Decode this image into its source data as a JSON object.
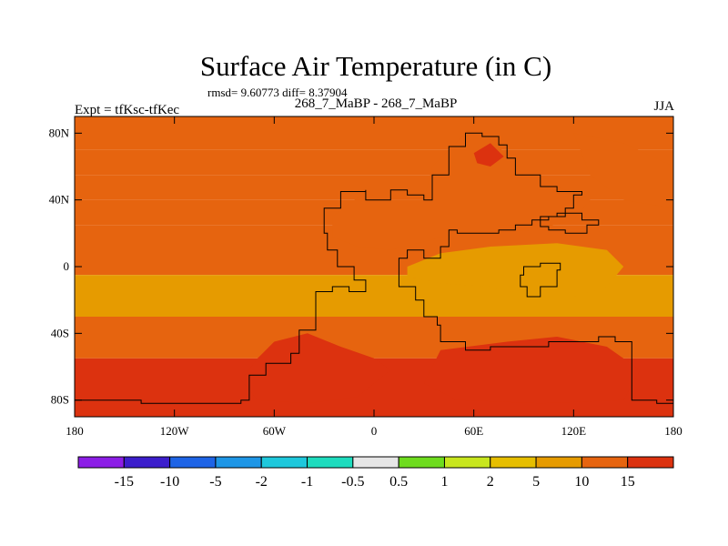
{
  "chart_data": {
    "type": "heatmap",
    "title": "Surface Air Temperature (in C)",
    "stats_text": "rmsd= 9.60773 diff= 8.37904",
    "subtitle": "268_7_MaBP - 268_7_MaBP",
    "left_label": "Expt = tfKsc-tfKec",
    "right_label": "JJA",
    "xlim": [
      -180,
      180
    ],
    "ylim": [
      -90,
      90
    ],
    "x_ticks": [
      {
        "value": -180,
        "label": "180"
      },
      {
        "value": -120,
        "label": "120W"
      },
      {
        "value": -60,
        "label": "60W"
      },
      {
        "value": 0,
        "label": "0"
      },
      {
        "value": 60,
        "label": "60E"
      },
      {
        "value": 120,
        "label": "120E"
      },
      {
        "value": 180,
        "label": "180"
      }
    ],
    "y_ticks": [
      {
        "value": 80,
        "label": "80N"
      },
      {
        "value": 40,
        "label": "40N"
      },
      {
        "value": 0,
        "label": "0"
      },
      {
        "value": -40,
        "label": "40S"
      },
      {
        "value": -80,
        "label": "80S"
      }
    ],
    "colorbar": {
      "colors": [
        "#8c1ee6",
        "#3c1ecc",
        "#1e64e6",
        "#1e96e6",
        "#1ec8dc",
        "#1edcbe",
        "#e6e6e6",
        "#6edc1e",
        "#c8e61e",
        "#e6be00",
        "#e69b00",
        "#e6640f",
        "#dc320f"
      ],
      "labels": [
        "-15",
        "-10",
        "-5",
        "-2",
        "-1",
        "-0.5",
        "0.5",
        "1",
        "2",
        "5",
        "10",
        "15"
      ]
    },
    "field_bands": [
      {
        "lat": 90,
        "level": 10
      },
      {
        "lat": 70,
        "level": 10
      },
      {
        "lat": 55,
        "level": 10
      },
      {
        "lat": 40,
        "level": 10
      },
      {
        "lat": 25,
        "level": 10
      },
      {
        "lat": 12,
        "level": 10
      },
      {
        "lat": -5,
        "level": 5
      },
      {
        "lat": -18,
        "level": 5
      },
      {
        "lat": -30,
        "level": 10
      },
      {
        "lat": -45,
        "level": 10
      },
      {
        "lat": -55,
        "level": 15
      },
      {
        "lat": -90,
        "level": 15
      }
    ],
    "field_regions": [
      {
        "name": "pangaea-north",
        "level": 10,
        "points": [
          [
            -25,
            30
          ],
          [
            -5,
            45
          ],
          [
            5,
            40
          ],
          [
            20,
            40
          ],
          [
            30,
            40
          ],
          [
            35,
            60
          ],
          [
            55,
            80
          ],
          [
            70,
            80
          ],
          [
            80,
            65
          ],
          [
            90,
            55
          ],
          [
            100,
            55
          ],
          [
            110,
            48
          ],
          [
            130,
            40
          ],
          [
            120,
            28
          ],
          [
            95,
            22
          ],
          [
            70,
            20
          ],
          [
            50,
            20
          ],
          [
            30,
            15
          ],
          [
            10,
            10
          ],
          [
            -10,
            12
          ],
          [
            -25,
            18
          ]
        ]
      },
      {
        "name": "tethys-warm",
        "level": 5,
        "points": [
          [
            20,
            0
          ],
          [
            40,
            8
          ],
          [
            70,
            12
          ],
          [
            110,
            14
          ],
          [
            140,
            10
          ],
          [
            150,
            0
          ],
          [
            140,
            -12
          ],
          [
            120,
            -18
          ],
          [
            95,
            -18
          ],
          [
            70,
            -12
          ],
          [
            40,
            -10
          ],
          [
            20,
            -6
          ]
        ]
      },
      {
        "name": "northern-hotspot",
        "level": 15,
        "points": [
          [
            60,
            68
          ],
          [
            70,
            74
          ],
          [
            78,
            66
          ],
          [
            70,
            60
          ],
          [
            62,
            62
          ]
        ]
      },
      {
        "name": "eastern-ocean-warm",
        "level": 10,
        "points": [
          [
            120,
            80
          ],
          [
            150,
            74
          ],
          [
            180,
            60
          ],
          [
            180,
            35
          ],
          [
            150,
            40
          ],
          [
            130,
            55
          ]
        ]
      },
      {
        "name": "gondwana-interior",
        "level": 15,
        "points": [
          [
            -70,
            -55
          ],
          [
            -60,
            -45
          ],
          [
            -40,
            -40
          ],
          [
            -20,
            -48
          ],
          [
            0,
            -55
          ],
          [
            10,
            -62
          ],
          [
            -10,
            -78
          ],
          [
            -40,
            -82
          ],
          [
            -70,
            -80
          ],
          [
            -80,
            -68
          ]
        ]
      },
      {
        "name": "gondwana-east",
        "level": 15,
        "points": [
          [
            40,
            -50
          ],
          [
            80,
            -45
          ],
          [
            110,
            -42
          ],
          [
            140,
            -48
          ],
          [
            160,
            -62
          ],
          [
            150,
            -80
          ],
          [
            100,
            -82
          ],
          [
            50,
            -80
          ],
          [
            30,
            -70
          ]
        ]
      }
    ],
    "coastlines": [
      {
        "name": "pangaea",
        "points": [
          [
            -30,
            35
          ],
          [
            -20,
            45
          ],
          [
            -5,
            46
          ],
          [
            -5,
            40
          ],
          [
            5,
            40
          ],
          [
            10,
            46
          ],
          [
            20,
            43
          ],
          [
            30,
            40
          ],
          [
            35,
            55
          ],
          [
            45,
            62
          ],
          [
            45,
            72
          ],
          [
            55,
            80
          ],
          [
            65,
            78
          ],
          [
            75,
            73
          ],
          [
            80,
            65
          ],
          [
            85,
            55
          ],
          [
            95,
            55
          ],
          [
            100,
            48
          ],
          [
            110,
            45
          ],
          [
            125,
            43
          ],
          [
            120,
            35
          ],
          [
            115,
            30
          ],
          [
            105,
            28
          ],
          [
            95,
            25
          ],
          [
            85,
            22
          ],
          [
            75,
            20
          ],
          [
            60,
            20
          ],
          [
            50,
            22
          ],
          [
            45,
            12
          ],
          [
            40,
            5
          ],
          [
            30,
            10
          ],
          [
            20,
            5
          ],
          [
            15,
            -2
          ],
          [
            15,
            -12
          ],
          [
            25,
            -20
          ],
          [
            30,
            -30
          ],
          [
            38,
            -35
          ],
          [
            40,
            -45
          ],
          [
            55,
            -50
          ],
          [
            70,
            -48
          ],
          [
            90,
            -48
          ],
          [
            105,
            -45
          ],
          [
            120,
            -45
          ],
          [
            135,
            -42
          ],
          [
            145,
            -45
          ],
          [
            155,
            -60
          ],
          [
            155,
            -80
          ],
          [
            170,
            -82
          ],
          [
            180,
            -82
          ],
          [
            180,
            -90
          ],
          [
            -180,
            -90
          ],
          [
            -180,
            -80
          ],
          [
            -140,
            -82
          ],
          [
            -80,
            -80
          ],
          [
            -75,
            -65
          ],
          [
            -65,
            -58
          ],
          [
            -50,
            -52
          ],
          [
            -45,
            -38
          ],
          [
            -35,
            -25
          ],
          [
            -35,
            -15
          ],
          [
            -25,
            -12
          ],
          [
            -15,
            -15
          ],
          [
            -5,
            -8
          ],
          [
            -12,
            0
          ],
          [
            -22,
            10
          ],
          [
            -28,
            20
          ],
          [
            -30,
            30
          ]
        ]
      },
      {
        "name": "eastern-island",
        "points": [
          [
            90,
            0
          ],
          [
            100,
            2
          ],
          [
            112,
            -2
          ],
          [
            110,
            -12
          ],
          [
            100,
            -18
          ],
          [
            92,
            -12
          ],
          [
            88,
            -5
          ]
        ]
      },
      {
        "name": "northeast-spur",
        "points": [
          [
            100,
            30
          ],
          [
            110,
            32
          ],
          [
            125,
            28
          ],
          [
            135,
            25
          ],
          [
            128,
            20
          ],
          [
            115,
            22
          ],
          [
            105,
            24
          ]
        ]
      }
    ]
  }
}
